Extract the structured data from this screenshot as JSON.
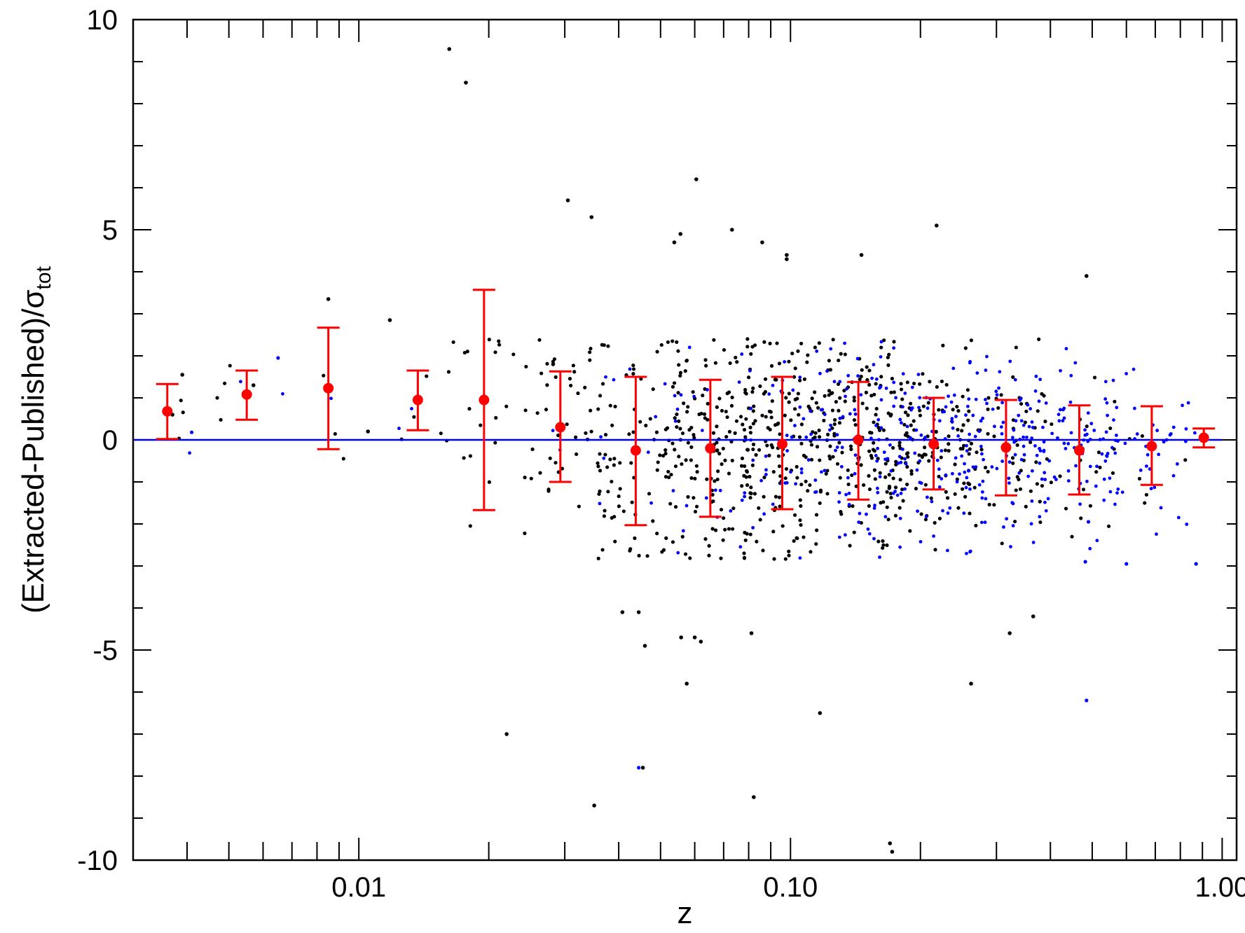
{
  "chart_data": {
    "type": "scatter",
    "xlabel": "z",
    "ylabel": "(Extracted-Published)/σ",
    "ylabel_subscript": "tot",
    "x_scale": "log",
    "xlim": [
      0.003,
      1.08
    ],
    "ylim": [
      -10,
      10
    ],
    "x_ticks": [
      {
        "value": 0.01,
        "label": "0.01"
      },
      {
        "value": 0.1,
        "label": "0.10"
      },
      {
        "value": 1.0,
        "label": "1.00"
      }
    ],
    "y_ticks": [
      {
        "value": -10,
        "label": "-10"
      },
      {
        "value": -5,
        "label": "-5"
      },
      {
        "value": 0,
        "label": "0"
      },
      {
        "value": 5,
        "label": "5"
      },
      {
        "value": 10,
        "label": "10"
      }
    ],
    "grid": false,
    "reference_line": {
      "y": 0,
      "color": "#0000ff"
    },
    "colors": {
      "black_points": "#000000",
      "blue_points": "#0000ff",
      "binned": "#ff0000"
    },
    "binned_means": {
      "x": [
        0.0036,
        0.0055,
        0.0085,
        0.0137,
        0.0195,
        0.0293,
        0.0438,
        0.0652,
        0.0957,
        0.1436,
        0.2146,
        0.3157,
        0.4667,
        0.6868,
        0.9067
      ],
      "y": [
        0.68,
        1.08,
        1.23,
        0.95,
        0.95,
        0.3,
        -0.25,
        -0.2,
        -0.1,
        0.0,
        -0.1,
        -0.18,
        -0.25,
        -0.15,
        0.05
      ],
      "y_low": [
        0.02,
        0.48,
        -0.22,
        0.23,
        -1.67,
        -1.0,
        -2.03,
        -1.83,
        -1.65,
        -1.42,
        -1.18,
        -1.32,
        -1.3,
        -1.07,
        -0.18
      ],
      "y_high": [
        1.33,
        1.65,
        2.67,
        1.65,
        3.57,
        1.63,
        1.5,
        1.43,
        1.5,
        1.38,
        1.0,
        0.95,
        0.82,
        0.8,
        0.27
      ]
    },
    "outliers_black": {
      "x": [
        0.0162,
        0.0177,
        0.0605,
        0.0305,
        0.0346,
        0.0732,
        0.0556,
        0.0538,
        0.086,
        0.098,
        0.098,
        0.146,
        0.218,
        0.485,
        0.022,
        0.0408,
        0.0445,
        0.046,
        0.0558,
        0.06,
        0.062,
        0.0812,
        0.0575,
        0.117,
        0.262,
        0.322,
        0.365,
        0.0455,
        0.0351,
        0.0822,
        0.17,
        0.172,
        0.0085,
        0.0118,
        0.0105,
        0.0039,
        0.0057,
        0.0037
      ],
      "y": [
        9.3,
        8.5,
        6.2,
        5.7,
        5.3,
        5.0,
        4.9,
        4.7,
        4.7,
        4.4,
        4.3,
        4.4,
        5.1,
        3.9,
        -7.0,
        -4.1,
        -4.1,
        -4.9,
        -4.7,
        -4.7,
        -4.8,
        -4.6,
        -5.8,
        -6.5,
        -5.8,
        -4.6,
        -4.2,
        -7.8,
        -8.7,
        -8.5,
        -9.6,
        -9.8,
        3.35,
        2.85,
        0.2,
        1.55,
        1.3,
        0.6
      ]
    },
    "outliers_blue": {
      "x": [
        0.0445,
        0.485,
        0.482,
        0.49,
        0.6,
        0.87,
        0.0065,
        0.0041
      ],
      "y": [
        -7.8,
        -6.2,
        -2.9,
        -1.95,
        -2.95,
        -2.95,
        1.95,
        0.18
      ]
    }
  }
}
